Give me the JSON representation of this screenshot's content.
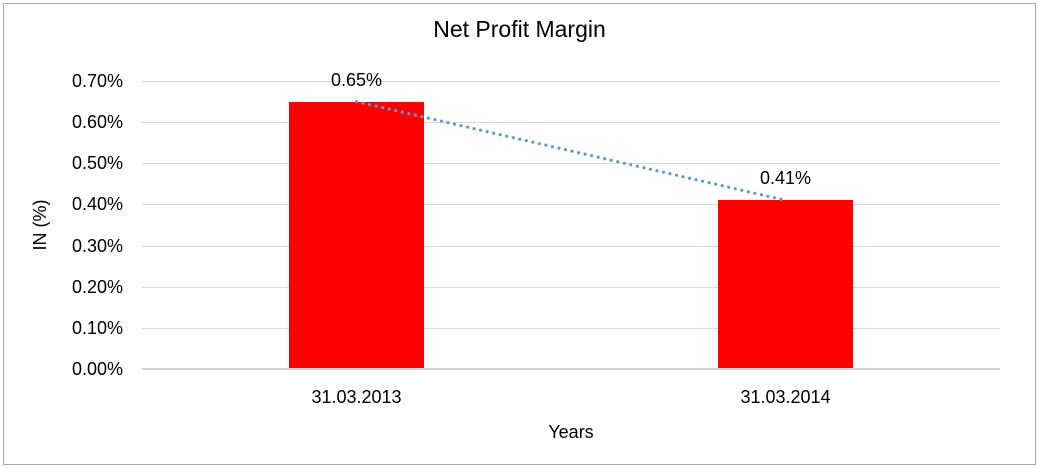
{
  "chart_data": {
    "type": "bar",
    "title": "Net Profit Margin",
    "xlabel": "Years",
    "ylabel": "IN (%)",
    "categories": [
      "31.03.2013",
      "31.03.2014"
    ],
    "values": [
      0.65,
      0.41
    ],
    "data_labels": [
      "0.65%",
      "0.41%"
    ],
    "yticks": [
      {
        "value": 0.7,
        "label": "0.70%"
      },
      {
        "value": 0.6,
        "label": "0.60%"
      },
      {
        "value": 0.5,
        "label": "0.50%"
      },
      {
        "value": 0.4,
        "label": "0.40%"
      },
      {
        "value": 0.3,
        "label": "0.30%"
      },
      {
        "value": 0.2,
        "label": "0.20%"
      },
      {
        "value": 0.1,
        "label": "0.10%"
      },
      {
        "value": 0.0,
        "label": "0.00%"
      }
    ],
    "ylim": [
      0,
      0.7
    ],
    "grid": true,
    "legend_position": "none",
    "bar_color": "#ff0000",
    "trendline": {
      "style": "dotted",
      "color": "#5b9bd5",
      "from_value": 0.65,
      "to_value": 0.41
    }
  }
}
